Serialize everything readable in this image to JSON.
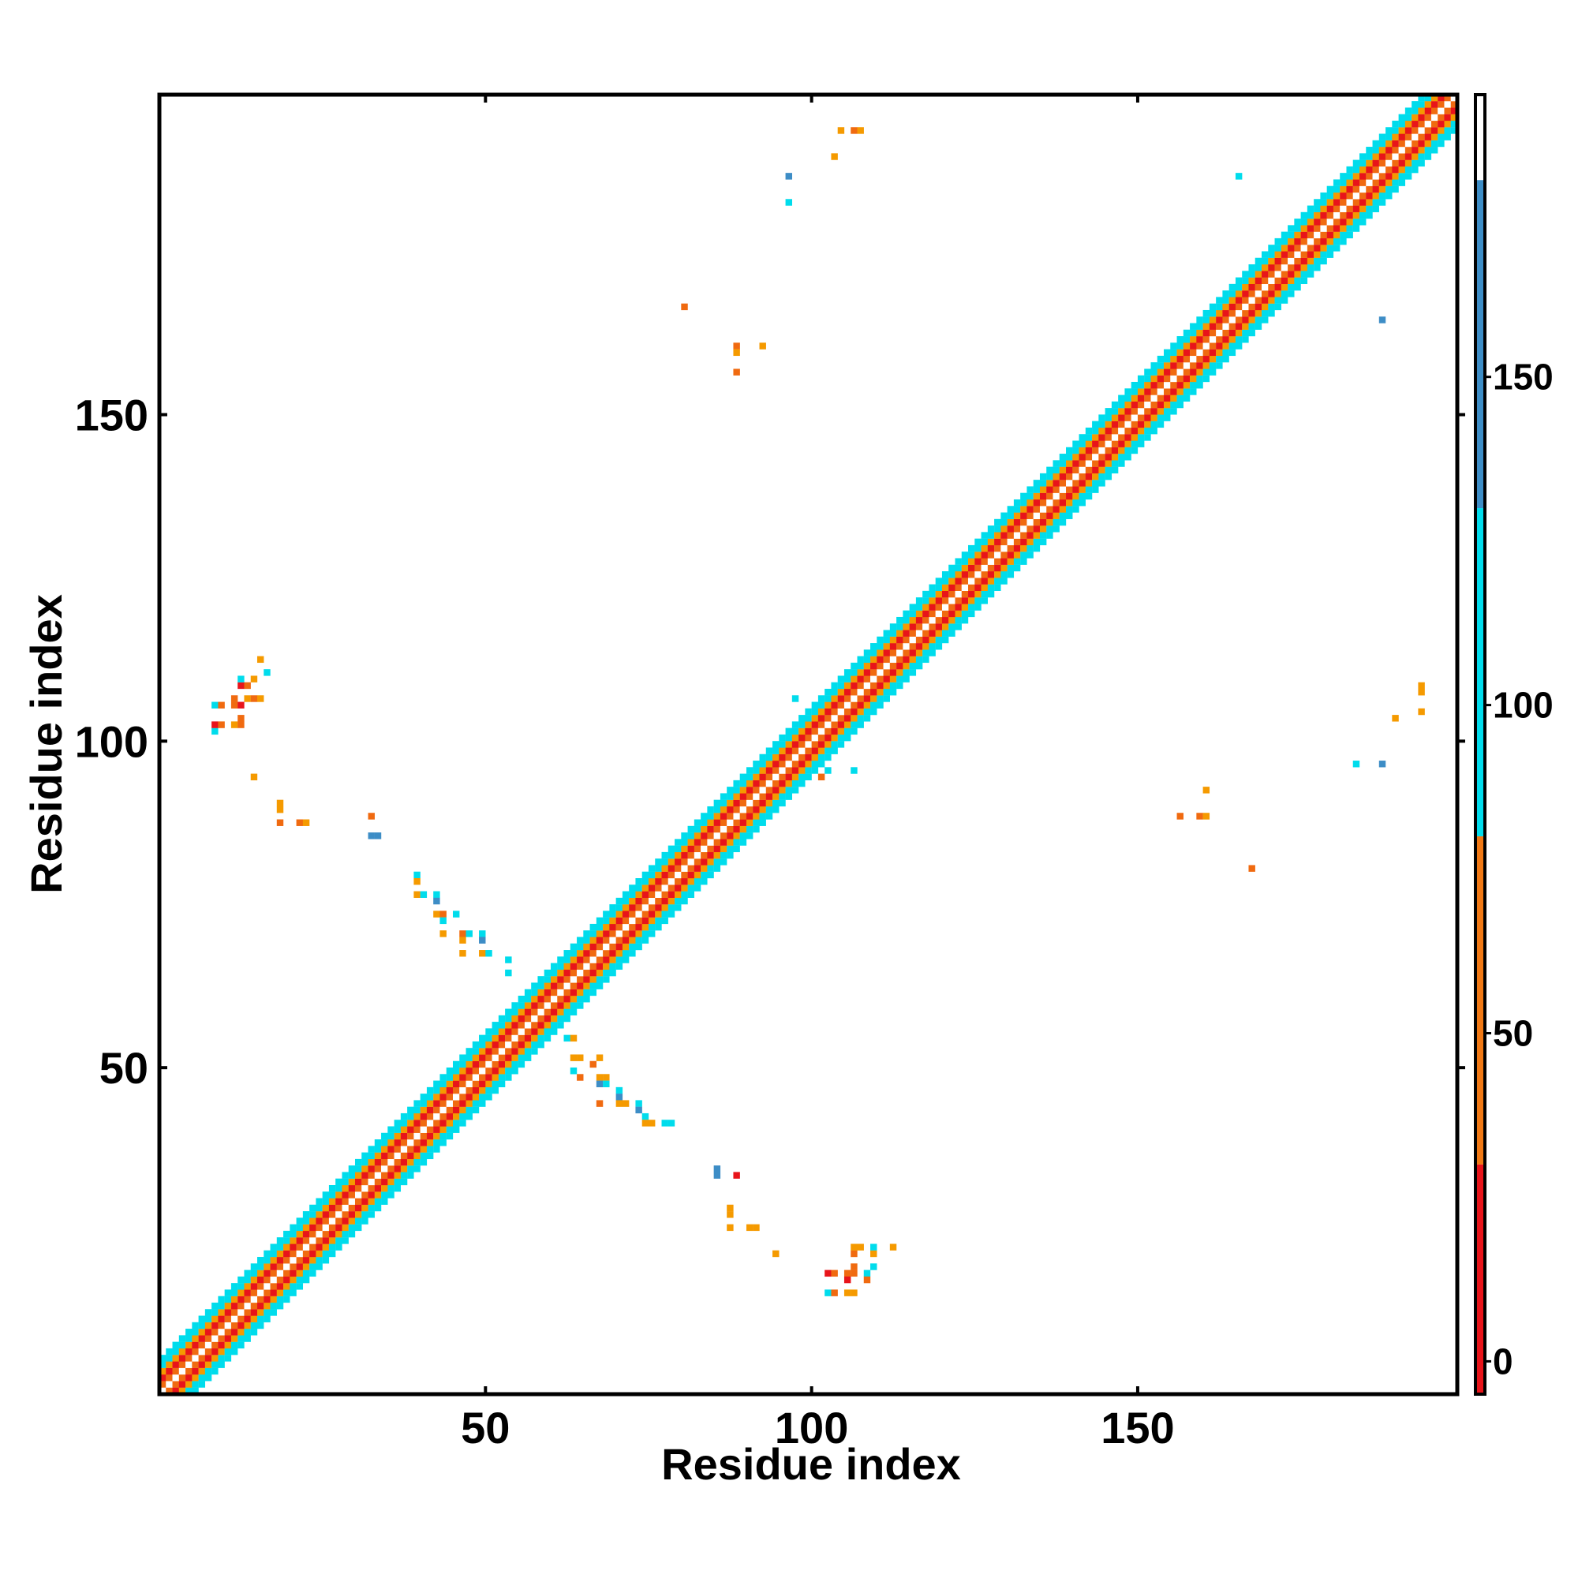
{
  "chart_data": {
    "type": "heatmap",
    "title": "",
    "xlabel": "Residue index",
    "ylabel": "Residue index",
    "xlim": [
      0,
      199
    ],
    "ylim": [
      0,
      199
    ],
    "x_ticks": [
      50,
      100,
      150
    ],
    "y_ticks": [
      50,
      100,
      150
    ],
    "grid": false,
    "colorbar": {
      "ticks": [
        0,
        50,
        100,
        150
      ],
      "range": [
        -5,
        193
      ],
      "bands": [
        {
          "from": -5,
          "to": 30,
          "color": "#e8141a"
        },
        {
          "from": 30,
          "to": 80,
          "color": "#f07814"
        },
        {
          "from": 80,
          "to": 130,
          "color": "#00dcec"
        },
        {
          "from": 130,
          "to": 180,
          "color": "#3d8dc6"
        },
        {
          "from": 180,
          "to": 193,
          "color": "#ffffff"
        }
      ]
    },
    "colors": {
      "red": "#e8141a",
      "dark_orange": "#f06a10",
      "orange": "#f59a00",
      "cyan": "#00dcec",
      "steel_blue": "#3d8dc6"
    },
    "diagonal": {
      "start": 0,
      "end": 198,
      "cell_size": 1,
      "bands": [
        {
          "offset": 0,
          "color": "#ffffff"
        },
        {
          "offset": 1,
          "color": "#f06a10"
        },
        {
          "offset": 2,
          "color": "#e8141a"
        },
        {
          "offset": 3,
          "color": "#f59a00"
        },
        {
          "offset": 4,
          "color": "#00dcec"
        },
        {
          "offset": 5,
          "color": "#00dcec"
        }
      ]
    },
    "off_diagonal_contacts": [
      {
        "x": 8,
        "y": 101,
        "color": "#00dcec"
      },
      {
        "x": 8,
        "y": 102,
        "color": "#e8141a"
      },
      {
        "x": 9,
        "y": 102,
        "color": "#f06a10"
      },
      {
        "x": 11,
        "y": 102,
        "color": "#f59a00"
      },
      {
        "x": 12,
        "y": 102,
        "color": "#f06a10"
      },
      {
        "x": 12,
        "y": 103,
        "color": "#f06a10"
      },
      {
        "x": 8,
        "y": 105,
        "color": "#00dcec"
      },
      {
        "x": 9,
        "y": 105,
        "color": "#f06a10"
      },
      {
        "x": 11,
        "y": 105,
        "color": "#f06a10"
      },
      {
        "x": 12,
        "y": 105,
        "color": "#e8141a"
      },
      {
        "x": 11,
        "y": 106,
        "color": "#f06a10"
      },
      {
        "x": 13,
        "y": 106,
        "color": "#f59a00"
      },
      {
        "x": 14,
        "y": 106,
        "color": "#f06a10"
      },
      {
        "x": 15,
        "y": 106,
        "color": "#f59a00"
      },
      {
        "x": 12,
        "y": 108,
        "color": "#e8141a"
      },
      {
        "x": 13,
        "y": 108,
        "color": "#f06a10"
      },
      {
        "x": 12,
        "y": 109,
        "color": "#00dcec"
      },
      {
        "x": 14,
        "y": 109,
        "color": "#f59a00"
      },
      {
        "x": 16,
        "y": 110,
        "color": "#00dcec"
      },
      {
        "x": 15,
        "y": 112,
        "color": "#f59a00"
      },
      {
        "x": 14,
        "y": 94,
        "color": "#f59a00"
      },
      {
        "x": 18,
        "y": 90,
        "color": "#f59a00"
      },
      {
        "x": 18,
        "y": 89,
        "color": "#f59a00"
      },
      {
        "x": 18,
        "y": 87,
        "color": "#f06a10"
      },
      {
        "x": 21,
        "y": 87,
        "color": "#f06a10"
      },
      {
        "x": 22,
        "y": 87,
        "color": "#f59a00"
      },
      {
        "x": 32,
        "y": 88,
        "color": "#f06a10"
      },
      {
        "x": 32,
        "y": 85,
        "color": "#3d8dc6"
      },
      {
        "x": 33,
        "y": 85,
        "color": "#3d8dc6"
      },
      {
        "x": 39,
        "y": 79,
        "color": "#00dcec"
      },
      {
        "x": 39,
        "y": 78,
        "color": "#f59a00"
      },
      {
        "x": 39,
        "y": 76,
        "color": "#f59a00"
      },
      {
        "x": 40,
        "y": 76,
        "color": "#00dcec"
      },
      {
        "x": 42,
        "y": 76,
        "color": "#00dcec"
      },
      {
        "x": 42,
        "y": 75,
        "color": "#3d8dc6"
      },
      {
        "x": 42,
        "y": 73,
        "color": "#f59a00"
      },
      {
        "x": 43,
        "y": 73,
        "color": "#f06a10"
      },
      {
        "x": 45,
        "y": 73,
        "color": "#00dcec"
      },
      {
        "x": 43,
        "y": 72,
        "color": "#00dcec"
      },
      {
        "x": 43,
        "y": 70,
        "color": "#f59a00"
      },
      {
        "x": 46,
        "y": 70,
        "color": "#f06a10"
      },
      {
        "x": 47,
        "y": 70,
        "color": "#00dcec"
      },
      {
        "x": 49,
        "y": 70,
        "color": "#00dcec"
      },
      {
        "x": 46,
        "y": 69,
        "color": "#f59a00"
      },
      {
        "x": 49,
        "y": 69,
        "color": "#3d8dc6"
      },
      {
        "x": 46,
        "y": 67,
        "color": "#f59a00"
      },
      {
        "x": 49,
        "y": 67,
        "color": "#f59a00"
      },
      {
        "x": 50,
        "y": 67,
        "color": "#00dcec"
      },
      {
        "x": 53,
        "y": 66,
        "color": "#00dcec"
      },
      {
        "x": 53,
        "y": 64,
        "color": "#00dcec"
      },
      {
        "x": 59,
        "y": 55,
        "color": "#00dcec"
      },
      {
        "x": 62,
        "y": 54,
        "color": "#00dcec"
      },
      {
        "x": 63,
        "y": 54,
        "color": "#f59a00"
      },
      {
        "x": 63,
        "y": 51,
        "color": "#f59a00"
      },
      {
        "x": 64,
        "y": 51,
        "color": "#f59a00"
      },
      {
        "x": 67,
        "y": 51,
        "color": "#f59a00"
      },
      {
        "x": 66,
        "y": 50,
        "color": "#f06a10"
      },
      {
        "x": 63,
        "y": 49,
        "color": "#00dcec"
      },
      {
        "x": 64,
        "y": 48,
        "color": "#f06a10"
      },
      {
        "x": 67,
        "y": 48,
        "color": "#f59a00"
      },
      {
        "x": 68,
        "y": 48,
        "color": "#f59a00"
      },
      {
        "x": 67,
        "y": 47,
        "color": "#3d8dc6"
      },
      {
        "x": 68,
        "y": 47,
        "color": "#00dcec"
      },
      {
        "x": 70,
        "y": 46,
        "color": "#00dcec"
      },
      {
        "x": 70,
        "y": 45,
        "color": "#3d8dc6"
      },
      {
        "x": 67,
        "y": 44,
        "color": "#f06a10"
      },
      {
        "x": 70,
        "y": 44,
        "color": "#f59a00"
      },
      {
        "x": 71,
        "y": 44,
        "color": "#f59a00"
      },
      {
        "x": 73,
        "y": 44,
        "color": "#00dcec"
      },
      {
        "x": 73,
        "y": 43,
        "color": "#3d8dc6"
      },
      {
        "x": 74,
        "y": 42,
        "color": "#00dcec"
      },
      {
        "x": 74,
        "y": 41,
        "color": "#f59a00"
      },
      {
        "x": 75,
        "y": 41,
        "color": "#f59a00"
      },
      {
        "x": 77,
        "y": 41,
        "color": "#00dcec"
      },
      {
        "x": 78,
        "y": 41,
        "color": "#00dcec"
      },
      {
        "x": 85,
        "y": 34,
        "color": "#3d8dc6"
      },
      {
        "x": 85,
        "y": 33,
        "color": "#3d8dc6"
      },
      {
        "x": 88,
        "y": 33,
        "color": "#e8141a"
      },
      {
        "x": 87,
        "y": 28,
        "color": "#f59a00"
      },
      {
        "x": 87,
        "y": 27,
        "color": "#f59a00"
      },
      {
        "x": 87,
        "y": 25,
        "color": "#f59a00"
      },
      {
        "x": 90,
        "y": 25,
        "color": "#f59a00"
      },
      {
        "x": 91,
        "y": 25,
        "color": "#f59a00"
      },
      {
        "x": 94,
        "y": 21,
        "color": "#f59a00"
      },
      {
        "x": 102,
        "y": 18,
        "color": "#e8141a"
      },
      {
        "x": 103,
        "y": 18,
        "color": "#f06a10"
      },
      {
        "x": 105,
        "y": 18,
        "color": "#f06a10"
      },
      {
        "x": 105,
        "y": 17,
        "color": "#e8141a"
      },
      {
        "x": 106,
        "y": 18,
        "color": "#f06a10"
      },
      {
        "x": 106,
        "y": 19,
        "color": "#f06a10"
      },
      {
        "x": 106,
        "y": 21,
        "color": "#f06a10"
      },
      {
        "x": 106,
        "y": 22,
        "color": "#f59a00"
      },
      {
        "x": 107,
        "y": 22,
        "color": "#f59a00"
      },
      {
        "x": 108,
        "y": 18,
        "color": "#00dcec"
      },
      {
        "x": 108,
        "y": 17,
        "color": "#f06a10"
      },
      {
        "x": 109,
        "y": 19,
        "color": "#00dcec"
      },
      {
        "x": 109,
        "y": 21,
        "color": "#f59a00"
      },
      {
        "x": 109,
        "y": 22,
        "color": "#00dcec"
      },
      {
        "x": 112,
        "y": 22,
        "color": "#f59a00"
      },
      {
        "x": 102,
        "y": 15,
        "color": "#00dcec"
      },
      {
        "x": 103,
        "y": 15,
        "color": "#f06a10"
      },
      {
        "x": 105,
        "y": 15,
        "color": "#f59a00"
      },
      {
        "x": 106,
        "y": 15,
        "color": "#f59a00"
      },
      {
        "x": 96,
        "y": 186,
        "color": "#3d8dc6"
      },
      {
        "x": 96,
        "y": 182,
        "color": "#00dcec"
      },
      {
        "x": 103,
        "y": 189,
        "color": "#f59a00"
      },
      {
        "x": 104,
        "y": 193,
        "color": "#f59a00"
      },
      {
        "x": 106,
        "y": 193,
        "color": "#f06a10"
      },
      {
        "x": 107,
        "y": 193,
        "color": "#f59a00"
      },
      {
        "x": 80,
        "y": 166,
        "color": "#f06a10"
      },
      {
        "x": 88,
        "y": 160,
        "color": "#f06a10"
      },
      {
        "x": 88,
        "y": 159,
        "color": "#f59a00"
      },
      {
        "x": 88,
        "y": 156,
        "color": "#f06a10"
      },
      {
        "x": 92,
        "y": 160,
        "color": "#f59a00"
      },
      {
        "x": 97,
        "y": 106,
        "color": "#00dcec"
      },
      {
        "x": 102,
        "y": 95,
        "color": "#00dcec"
      },
      {
        "x": 106,
        "y": 95,
        "color": "#00dcec"
      },
      {
        "x": 101,
        "y": 94,
        "color": "#f06a10"
      },
      {
        "x": 165,
        "y": 186,
        "color": "#00dcec"
      },
      {
        "x": 187,
        "y": 164,
        "color": "#3d8dc6"
      },
      {
        "x": 193,
        "y": 108,
        "color": "#f59a00"
      },
      {
        "x": 193,
        "y": 107,
        "color": "#f59a00"
      },
      {
        "x": 193,
        "y": 104,
        "color": "#f59a00"
      },
      {
        "x": 189,
        "y": 103,
        "color": "#f59a00"
      },
      {
        "x": 183,
        "y": 96,
        "color": "#00dcec"
      },
      {
        "x": 187,
        "y": 96,
        "color": "#3d8dc6"
      },
      {
        "x": 160,
        "y": 92,
        "color": "#f59a00"
      },
      {
        "x": 156,
        "y": 88,
        "color": "#f06a10"
      },
      {
        "x": 159,
        "y": 88,
        "color": "#f06a10"
      },
      {
        "x": 160,
        "y": 88,
        "color": "#f59a00"
      },
      {
        "x": 167,
        "y": 80,
        "color": "#f06a10"
      }
    ]
  }
}
